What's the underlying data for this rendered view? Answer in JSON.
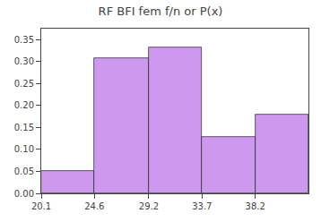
{
  "chart_data": {
    "type": "histogram",
    "title": "RF BFI fem f/n or P(x)",
    "bins": [
      20.1,
      24.6,
      29.2,
      33.7,
      38.2,
      42.7
    ],
    "values": [
      0.051,
      0.308,
      0.333,
      0.128,
      0.179
    ],
    "color": "#cc99ee",
    "xlim": [
      20.1,
      42.7
    ],
    "xticks": [
      20.1,
      24.6,
      29.2,
      33.7,
      38.2
    ],
    "ylim": [
      0,
      0.375
    ],
    "yticks": [
      {
        "value": 0,
        "label": "0.00"
      },
      0.05,
      {
        "value": 0.1,
        "label": "0.10"
      },
      0.15,
      {
        "value": 0.2,
        "label": "0.20"
      },
      0.25,
      {
        "value": 0.3,
        "label": "0.30"
      },
      0.35
    ],
    "grid": false
  }
}
